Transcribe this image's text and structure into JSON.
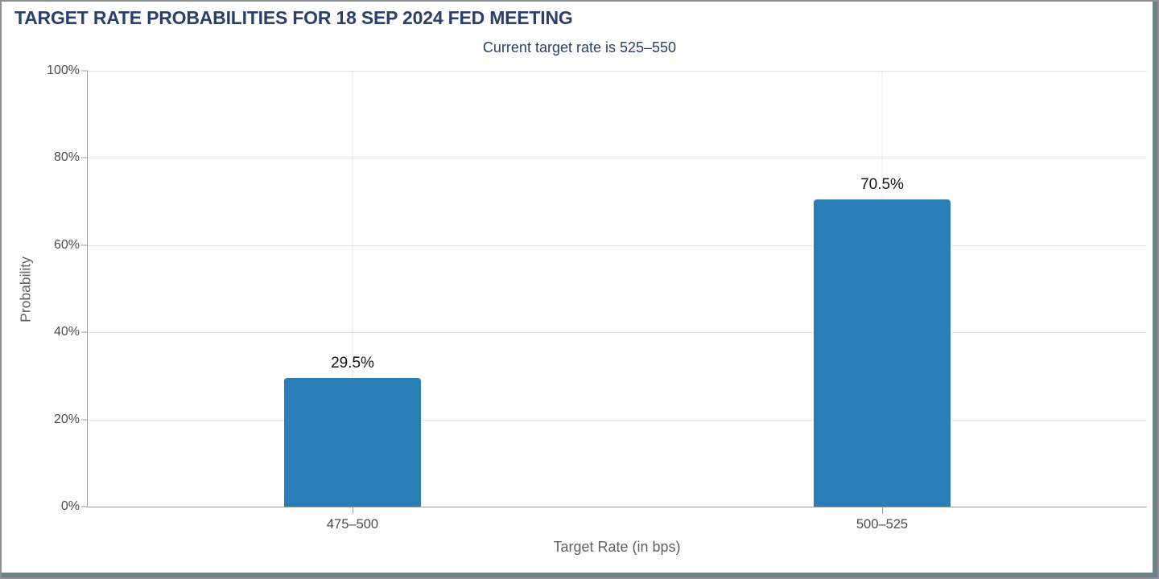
{
  "chart_data": {
    "type": "bar",
    "title": "TARGET RATE PROBABILITIES FOR 18 SEP 2024 FED MEETING",
    "subtitle": "Current target rate is 525–550",
    "categories": [
      "475–500",
      "500–525"
    ],
    "values": [
      29.5,
      70.5
    ],
    "value_labels": [
      "29.5%",
      "70.5%"
    ],
    "xlabel": "Target Rate (in bps)",
    "ylabel": "Probability",
    "ylim": [
      0,
      100
    ],
    "yticks": [
      "0%",
      "20%",
      "40%",
      "60%",
      "80%",
      "100%"
    ],
    "grid": true,
    "legend": "none",
    "bar_color": "#2a7eb6"
  },
  "colors": {
    "title_navy": "#2a3f6b",
    "bar_blue": "#2a7eb6",
    "grid": "#e4e4e4",
    "axis": "#9b9b9b",
    "tick_text": "#4c4c4c",
    "axis_title_text": "#606060",
    "value_text": "#141414",
    "frame_border": "#8d9194",
    "window_edge": "#6e8089"
  }
}
